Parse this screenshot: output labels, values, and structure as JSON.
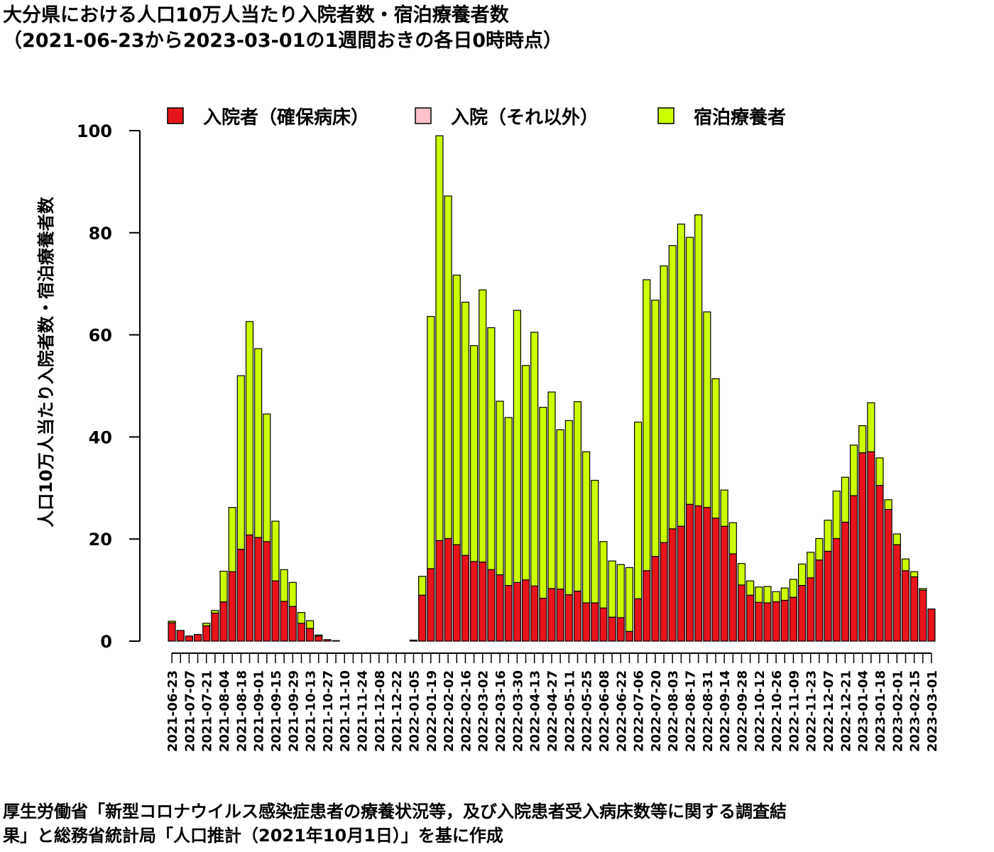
{
  "title_line1": "大分県における人口10万人当たり入院者数・宿泊療養者数",
  "title_line2": "（2021-06-23から2023-03-01の1週間おきの各日0時時点）",
  "footer_line1": "厚生労働省「新型コロナウイルス感染症患者の療養状況等，及び入院患者受入病床数等に関する調査結",
  "footer_line2": "果」と総務省統計局「人口推計（2021年10月1日）」を基に作成",
  "colors": {
    "hospital_secured": "#e8141b",
    "hospital_other": "#ffc0cb",
    "lodging": "#ccff00",
    "outline": "#000000"
  },
  "chart_data": {
    "type": "bar",
    "stacked": true,
    "ylabel": "人口10万人当たり入院者数・宿泊療養者数",
    "ylim": [
      0,
      100
    ],
    "yticks": [
      0,
      20,
      40,
      60,
      80,
      100
    ],
    "legend_position": "top",
    "x": [
      "2021-06-23",
      "2021-06-30",
      "2021-07-07",
      "2021-07-14",
      "2021-07-21",
      "2021-07-28",
      "2021-08-04",
      "2021-08-11",
      "2021-08-18",
      "2021-08-25",
      "2021-09-01",
      "2021-09-08",
      "2021-09-15",
      "2021-09-22",
      "2021-09-29",
      "2021-10-06",
      "2021-10-13",
      "2021-10-20",
      "2021-10-27",
      "2021-11-03",
      "2021-11-10",
      "2021-11-17",
      "2021-11-24",
      "2021-12-01",
      "2021-12-08",
      "2021-12-15",
      "2021-12-22",
      "2021-12-29",
      "2022-01-05",
      "2022-01-12",
      "2022-01-19",
      "2022-01-26",
      "2022-02-02",
      "2022-02-09",
      "2022-02-16",
      "2022-02-23",
      "2022-03-02",
      "2022-03-09",
      "2022-03-16",
      "2022-03-23",
      "2022-03-30",
      "2022-04-06",
      "2022-04-13",
      "2022-04-20",
      "2022-04-27",
      "2022-05-04",
      "2022-05-11",
      "2022-05-18",
      "2022-05-25",
      "2022-06-01",
      "2022-06-08",
      "2022-06-15",
      "2022-06-22",
      "2022-06-29",
      "2022-07-06",
      "2022-07-13",
      "2022-07-20",
      "2022-07-27",
      "2022-08-03",
      "2022-08-10",
      "2022-08-17",
      "2022-08-24",
      "2022-08-31",
      "2022-09-07",
      "2022-09-14",
      "2022-09-21",
      "2022-09-28",
      "2022-10-05",
      "2022-10-12",
      "2022-10-19",
      "2022-10-26",
      "2022-11-02",
      "2022-11-09",
      "2022-11-16",
      "2022-11-23",
      "2022-11-30",
      "2022-12-07",
      "2022-12-14",
      "2022-12-21",
      "2022-12-28",
      "2023-01-04",
      "2023-01-11",
      "2023-01-18",
      "2023-01-25",
      "2023-02-01",
      "2023-02-08",
      "2023-02-15",
      "2023-02-22",
      "2023-03-01"
    ],
    "tick_labels": [
      "2021-06-23",
      "2021-07-07",
      "2021-07-21",
      "2021-08-04",
      "2021-08-18",
      "2021-09-01",
      "2021-09-15",
      "2021-09-29",
      "2021-10-13",
      "2021-10-27",
      "2021-11-10",
      "2021-11-24",
      "2021-12-08",
      "2021-12-22",
      "2022-01-05",
      "2022-01-19",
      "2022-02-02",
      "2022-02-16",
      "2022-03-02",
      "2022-03-16",
      "2022-03-30",
      "2022-04-13",
      "2022-04-27",
      "2022-05-11",
      "2022-05-25",
      "2022-06-08",
      "2022-06-22",
      "2022-07-06",
      "2022-07-20",
      "2022-08-03",
      "2022-08-17",
      "2022-08-31",
      "2022-09-14",
      "2022-09-28",
      "2022-10-12",
      "2022-10-26",
      "2022-11-09",
      "2022-11-23",
      "2022-12-07",
      "2022-12-21",
      "2023-01-04",
      "2023-01-18",
      "2023-02-01",
      "2023-02-15",
      "2023-03-01"
    ],
    "series": [
      {
        "name": "入院者（確保病床）",
        "values": [
          3.6,
          2.1,
          1.0,
          1.3,
          3.0,
          5.5,
          7.7,
          13.6,
          18.0,
          20.8,
          20.3,
          19.5,
          11.8,
          7.8,
          6.8,
          3.5,
          2.5,
          1.0,
          0.3,
          0.1,
          0,
          0,
          0,
          0,
          0,
          0,
          0,
          0,
          0.2,
          9.0,
          14.2,
          19.7,
          20.1,
          18.9,
          16.8,
          15.6,
          15.5,
          14.0,
          13.0,
          10.9,
          11.5,
          12.0,
          10.8,
          8.4,
          10.3,
          10.2,
          9.1,
          9.8,
          7.5,
          7.5,
          6.5,
          4.7,
          4.6,
          1.9,
          8.3,
          13.8,
          16.6,
          19.3,
          22.0,
          22.5,
          26.8,
          26.5,
          26.2,
          24.1,
          22.5,
          17.1,
          11.0,
          9.0,
          7.6,
          7.5,
          7.7,
          8.0,
          8.6,
          10.9,
          12.4,
          15.9,
          17.6,
          20.1,
          23.3,
          28.5,
          36.9,
          37.1,
          30.5,
          25.8,
          18.9,
          13.8,
          12.6,
          10.0,
          6.3
        ]
      },
      {
        "name": "入院（それ以外）",
        "values": [
          0,
          0,
          0,
          0,
          0,
          0,
          0,
          0,
          0,
          0,
          0,
          0,
          0,
          0,
          0,
          0,
          0,
          0,
          0,
          0,
          0,
          0,
          0,
          0,
          0,
          0,
          0,
          0,
          0,
          0,
          0,
          0,
          0,
          0,
          0,
          0,
          0,
          0,
          0,
          0,
          0,
          0,
          0,
          0,
          0,
          0,
          0,
          0,
          0,
          0,
          0,
          0,
          0,
          0,
          0,
          0,
          0,
          0,
          0,
          0,
          0,
          0,
          0,
          0,
          0,
          0,
          0,
          0,
          0,
          0,
          0,
          0,
          0,
          0,
          0,
          0,
          0,
          0,
          0,
          0,
          0,
          0,
          0,
          0,
          0,
          0,
          0,
          0,
          0
        ]
      },
      {
        "name": "宿泊療養者",
        "values": [
          0.3,
          0,
          0,
          0,
          0.5,
          0.5,
          6.0,
          12.6,
          34.0,
          41.8,
          37.0,
          25.0,
          11.7,
          6.2,
          4.7,
          2.1,
          1.5,
          0.2,
          0,
          0,
          0,
          0,
          0,
          0,
          0,
          0,
          0,
          0,
          0,
          3.7,
          49.4,
          79.3,
          67.1,
          52.8,
          49.6,
          42.3,
          53.3,
          47.4,
          34.0,
          32.9,
          53.3,
          42.0,
          49.7,
          37.4,
          38.5,
          31.2,
          34.1,
          37.1,
          29.6,
          24.0,
          13.0,
          11.0,
          10.4,
          12.5,
          34.6,
          57.0,
          50.2,
          54.2,
          55.5,
          59.2,
          52.3,
          57.0,
          38.3,
          27.3,
          7.1,
          6.1,
          4.2,
          2.8,
          3.0,
          3.2,
          2.0,
          2.4,
          3.5,
          4.2,
          5.0,
          4.2,
          6.1,
          9.3,
          8.8,
          9.9,
          5.3,
          9.6,
          5.4,
          1.9,
          2.1,
          2.3,
          1.0,
          0.3,
          0
        ]
      }
    ]
  }
}
